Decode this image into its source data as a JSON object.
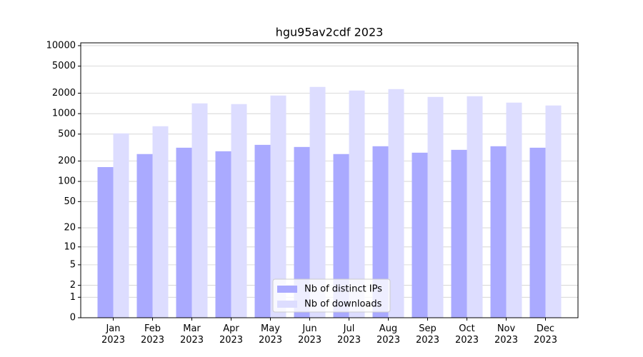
{
  "chart_data": {
    "type": "bar",
    "title": "hgu95av2cdf 2023",
    "categories": [
      "Jan\n2023",
      "Feb\n2023",
      "Mar\n2023",
      "Apr\n2023",
      "May\n2023",
      "Jun\n2023",
      "Jul\n2023",
      "Aug\n2023",
      "Sep\n2023",
      "Oct\n2023",
      "Nov\n2023",
      "Dec\n2023"
    ],
    "series": [
      {
        "name": "Nb of distinct IPs",
        "color": "#aaaaff",
        "values": [
          163,
          254,
          315,
          279,
          347,
          323,
          254,
          331,
          266,
          293,
          331,
          315
        ]
      },
      {
        "name": "Nb of downloads",
        "color": "#ddddff",
        "values": [
          512,
          653,
          1416,
          1383,
          1848,
          2472,
          2188,
          2296,
          1762,
          1803,
          1452,
          1318
        ]
      }
    ],
    "yscale": "log1p",
    "ylim": [
      0,
      11000
    ],
    "yticks": [
      0,
      1,
      2,
      5,
      10,
      20,
      50,
      100,
      200,
      500,
      1000,
      2000,
      5000,
      10000
    ],
    "grid": true,
    "legend": "lower center"
  }
}
